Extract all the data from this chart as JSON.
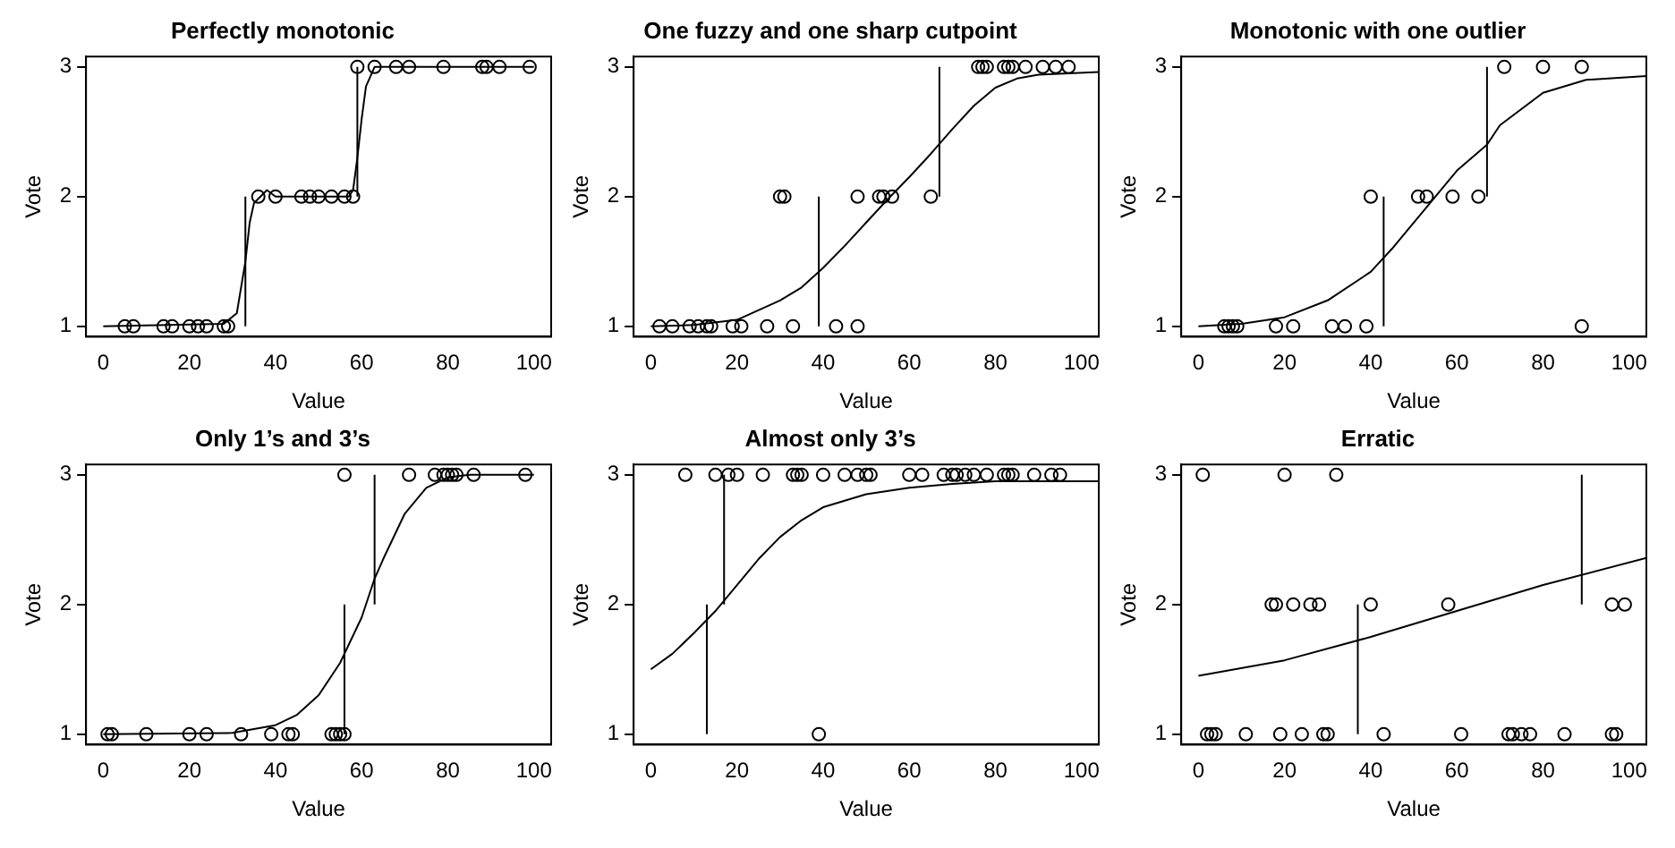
{
  "chart_data": [
    {
      "type": "scatter",
      "title": "Perfectly monotonic",
      "xlabel": "Value",
      "ylabel": "Vote",
      "xlim": [
        -4,
        104
      ],
      "ylim": [
        0.92,
        3.08
      ],
      "xticks": [
        0,
        20,
        40,
        60,
        80,
        100
      ],
      "yticks": [
        1,
        2,
        3
      ],
      "grid": false,
      "legend": false,
      "marker": "circle",
      "series": [
        {
          "color": "#000000",
          "x": [
            5,
            7,
            14,
            16,
            20,
            22,
            24,
            28,
            29,
            36,
            40,
            46,
            48,
            50,
            53,
            56,
            58,
            59,
            63,
            68,
            71,
            79,
            88,
            89,
            92,
            99
          ],
          "values": [
            1,
            1,
            1,
            1,
            1,
            1,
            1,
            1,
            1,
            2,
            2,
            2,
            2,
            2,
            2,
            2,
            2,
            3,
            3,
            3,
            3,
            3,
            3,
            3,
            3,
            3
          ]
        },
        {
          "type": "line",
          "marker": "none",
          "color": "#000000",
          "x": [
            0,
            28,
            31,
            32,
            33,
            34,
            35,
            38,
            40,
            57,
            58,
            59,
            60,
            61,
            63,
            70,
            100
          ],
          "values": [
            1,
            1.02,
            1.1,
            1.3,
            1.5,
            1.8,
            1.95,
            2.05,
            2,
            2,
            2.05,
            2.3,
            2.6,
            2.85,
            3,
            3,
            3
          ]
        },
        {
          "type": "line",
          "marker": "none",
          "color": "#000000",
          "x": [
            33,
            33
          ],
          "values": [
            1,
            2
          ]
        },
        {
          "type": "line",
          "marker": "none",
          "color": "#000000",
          "x": [
            59,
            59
          ],
          "values": [
            2,
            3
          ]
        }
      ]
    },
    {
      "type": "scatter",
      "title": "One fuzzy and one sharp cutpoint",
      "xlabel": "Value",
      "ylabel": "Vote",
      "xlim": [
        -4,
        104
      ],
      "ylim": [
        0.92,
        3.08
      ],
      "xticks": [
        0,
        20,
        40,
        60,
        80,
        100
      ],
      "yticks": [
        1,
        2,
        3
      ],
      "grid": false,
      "legend": false,
      "marker": "circle",
      "series": [
        {
          "color": "#000000",
          "x": [
            2,
            5,
            9,
            11,
            13,
            14,
            19,
            21,
            27,
            33,
            43,
            48,
            30,
            31,
            48,
            53,
            54,
            56,
            65,
            76,
            77,
            78,
            82,
            83,
            84,
            87,
            91,
            94,
            97
          ],
          "values": [
            1,
            1,
            1,
            1,
            1,
            1,
            1,
            1,
            1,
            1,
            1,
            1,
            2,
            2,
            2,
            2,
            2,
            2,
            2,
            3,
            3,
            3,
            3,
            3,
            3,
            3,
            3,
            3,
            3
          ]
        },
        {
          "type": "line",
          "marker": "none",
          "color": "#000000",
          "x": [
            0,
            10,
            20,
            30,
            35,
            40,
            45,
            50,
            55,
            60,
            65,
            70,
            75,
            80,
            85,
            90,
            104
          ],
          "values": [
            1,
            1.01,
            1.05,
            1.2,
            1.3,
            1.45,
            1.62,
            1.8,
            1.98,
            2.15,
            2.33,
            2.52,
            2.7,
            2.84,
            2.91,
            2.94,
            2.96
          ]
        },
        {
          "type": "line",
          "marker": "none",
          "color": "#000000",
          "x": [
            39,
            39
          ],
          "values": [
            1,
            2
          ]
        },
        {
          "type": "line",
          "marker": "none",
          "color": "#000000",
          "x": [
            67,
            67
          ],
          "values": [
            2,
            3
          ]
        }
      ]
    },
    {
      "type": "scatter",
      "title": "Monotonic with one outlier",
      "xlabel": "Value",
      "ylabel": "Vote",
      "xlim": [
        -4,
        104
      ],
      "ylim": [
        0.92,
        3.08
      ],
      "xticks": [
        0,
        20,
        40,
        60,
        80,
        100
      ],
      "yticks": [
        1,
        2,
        3
      ],
      "grid": false,
      "legend": false,
      "marker": "circle",
      "series": [
        {
          "color": "#000000",
          "x": [
            6,
            7,
            8,
            9,
            18,
            22,
            31,
            34,
            39,
            89,
            40,
            51,
            53,
            59,
            65,
            71,
            80,
            89
          ],
          "values": [
            1,
            1,
            1,
            1,
            1,
            1,
            1,
            1,
            1,
            1,
            2,
            2,
            2,
            2,
            2,
            3,
            3,
            3
          ]
        },
        {
          "type": "line",
          "marker": "none",
          "color": "#000000",
          "x": [
            0,
            10,
            20,
            30,
            40,
            45,
            50,
            55,
            60,
            67,
            70,
            80,
            90,
            104
          ],
          "values": [
            1,
            1.02,
            1.07,
            1.2,
            1.42,
            1.6,
            1.8,
            2,
            2.2,
            2.4,
            2.55,
            2.8,
            2.9,
            2.93
          ]
        },
        {
          "type": "line",
          "marker": "none",
          "color": "#000000",
          "x": [
            43,
            43
          ],
          "values": [
            1,
            2
          ]
        },
        {
          "type": "line",
          "marker": "none",
          "color": "#000000",
          "x": [
            67,
            67
          ],
          "values": [
            2,
            3
          ]
        }
      ]
    },
    {
      "type": "scatter",
      "title": "Only 1’s and 3’s",
      "xlabel": "Value",
      "ylabel": "Vote",
      "xlim": [
        -4,
        104
      ],
      "ylim": [
        0.92,
        3.08
      ],
      "xticks": [
        0,
        20,
        40,
        60,
        80,
        100
      ],
      "yticks": [
        1,
        2,
        3
      ],
      "grid": false,
      "legend": false,
      "marker": "circle",
      "series": [
        {
          "color": "#000000",
          "x": [
            1,
            2,
            10,
            20,
            24,
            32,
            39,
            43,
            44,
            53,
            54,
            55,
            56,
            56,
            71,
            77,
            79,
            80,
            81,
            82,
            86,
            98
          ],
          "values": [
            1,
            1,
            1,
            1,
            1,
            1,
            1,
            1,
            1,
            1,
            1,
            1,
            1,
            3,
            3,
            3,
            3,
            3,
            3,
            3,
            3,
            3
          ]
        },
        {
          "type": "line",
          "marker": "none",
          "color": "#000000",
          "x": [
            0,
            30,
            40,
            45,
            50,
            55,
            60,
            63,
            65,
            70,
            75,
            80,
            85,
            100
          ],
          "values": [
            1,
            1.01,
            1.07,
            1.15,
            1.3,
            1.55,
            1.9,
            2.2,
            2.35,
            2.7,
            2.9,
            2.98,
            3,
            3
          ]
        },
        {
          "type": "line",
          "marker": "none",
          "color": "#000000",
          "x": [
            56,
            56
          ],
          "values": [
            1,
            2
          ]
        },
        {
          "type": "line",
          "marker": "none",
          "color": "#000000",
          "x": [
            63,
            63
          ],
          "values": [
            2,
            3
          ]
        }
      ]
    },
    {
      "type": "scatter",
      "title": "Almost only 3’s",
      "xlabel": "Value",
      "ylabel": "Vote",
      "xlim": [
        -4,
        104
      ],
      "ylim": [
        0.92,
        3.08
      ],
      "xticks": [
        0,
        20,
        40,
        60,
        80,
        100
      ],
      "yticks": [
        1,
        2,
        3
      ],
      "grid": false,
      "legend": false,
      "marker": "circle",
      "series": [
        {
          "color": "#000000",
          "x": [
            8,
            15,
            18,
            20,
            26,
            33,
            34,
            35,
            40,
            45,
            48,
            50,
            51,
            60,
            63,
            68,
            70,
            71,
            73,
            75,
            78,
            82,
            83,
            84,
            89,
            93,
            95,
            39
          ],
          "values": [
            3,
            3,
            3,
            3,
            3,
            3,
            3,
            3,
            3,
            3,
            3,
            3,
            3,
            3,
            3,
            3,
            3,
            3,
            3,
            3,
            3,
            3,
            3,
            3,
            3,
            3,
            3,
            1
          ]
        },
        {
          "type": "line",
          "marker": "none",
          "color": "#000000",
          "x": [
            0,
            5,
            10,
            15,
            20,
            25,
            30,
            35,
            40,
            50,
            60,
            70,
            80,
            104
          ],
          "values": [
            1.5,
            1.62,
            1.78,
            1.95,
            2.15,
            2.35,
            2.52,
            2.65,
            2.75,
            2.85,
            2.9,
            2.93,
            2.95,
            2.95
          ]
        },
        {
          "type": "line",
          "marker": "none",
          "color": "#000000",
          "x": [
            13,
            13
          ],
          "values": [
            1,
            2
          ]
        },
        {
          "type": "line",
          "marker": "none",
          "color": "#000000",
          "x": [
            17,
            17
          ],
          "values": [
            2,
            3
          ]
        }
      ]
    },
    {
      "type": "scatter",
      "title": "Erratic",
      "xlabel": "Value",
      "ylabel": "Vote",
      "xlim": [
        -4,
        104
      ],
      "ylim": [
        0.92,
        3.08
      ],
      "xticks": [
        0,
        20,
        40,
        60,
        80,
        100
      ],
      "yticks": [
        1,
        2,
        3
      ],
      "grid": false,
      "legend": false,
      "marker": "circle",
      "series": [
        {
          "color": "#000000",
          "x": [
            1,
            20,
            32,
            17,
            18,
            22,
            26,
            28,
            40,
            58,
            96,
            99,
            2,
            3,
            4,
            11,
            19,
            24,
            29,
            30,
            43,
            61,
            72,
            73,
            75,
            77,
            85,
            96,
            97
          ],
          "values": [
            3,
            3,
            3,
            2,
            2,
            2,
            2,
            2,
            2,
            2,
            2,
            2,
            1,
            1,
            1,
            1,
            1,
            1,
            1,
            1,
            1,
            1,
            1,
            1,
            1,
            1,
            1,
            1,
            1
          ]
        },
        {
          "type": "line",
          "marker": "none",
          "color": "#000000",
          "x": [
            0,
            20,
            40,
            60,
            80,
            104
          ],
          "values": [
            1.45,
            1.57,
            1.75,
            1.95,
            2.15,
            2.36
          ]
        },
        {
          "type": "line",
          "marker": "none",
          "color": "#000000",
          "x": [
            37,
            37
          ],
          "values": [
            1,
            2
          ]
        },
        {
          "type": "line",
          "marker": "none",
          "color": "#000000",
          "x": [
            89,
            89
          ],
          "values": [
            2,
            3
          ]
        }
      ]
    }
  ]
}
